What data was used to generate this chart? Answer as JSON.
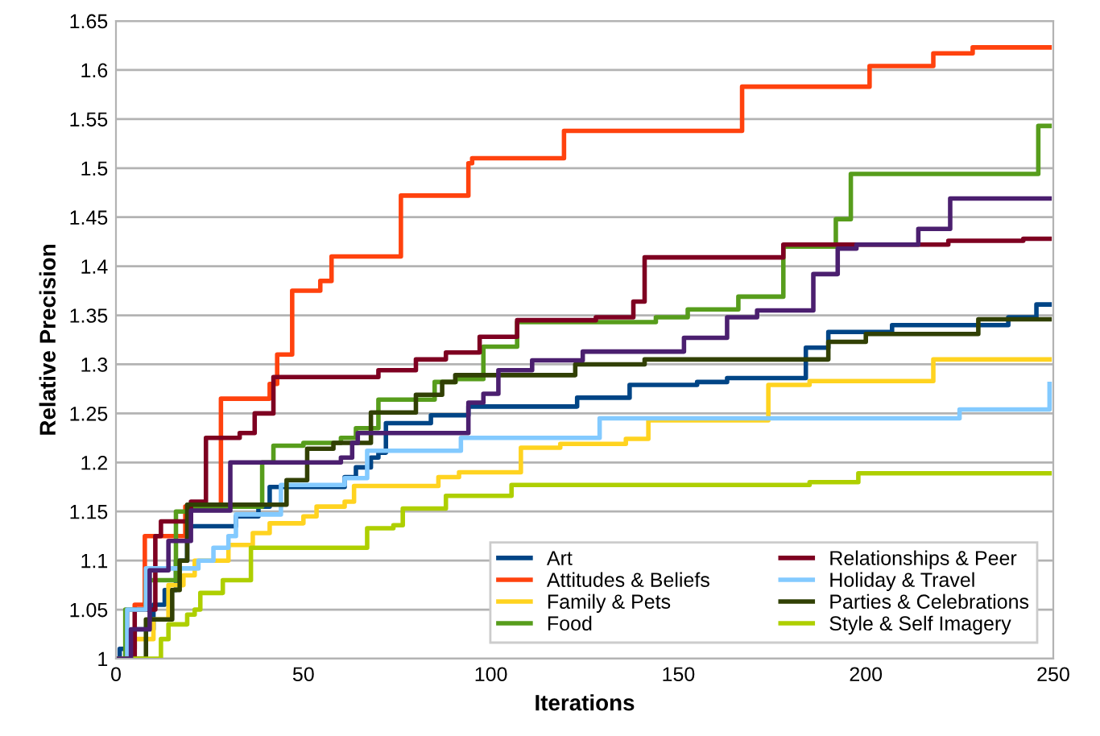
{
  "chart_data": {
    "type": "step",
    "xlabel": "Iterations",
    "ylabel": "Relative Precision",
    "xlim": [
      0,
      250
    ],
    "xticks": [
      0,
      50,
      100,
      150,
      200,
      250
    ],
    "ylim": [
      1,
      1.65
    ],
    "yticks": [
      1,
      1.05,
      1.1,
      1.15,
      1.2,
      1.25,
      1.3,
      1.35,
      1.4,
      1.45,
      1.5,
      1.55,
      1.6,
      1.65
    ],
    "grid": "y",
    "legend": "bottom right",
    "marker": "none",
    "line_style": "solid",
    "series": [
      {
        "name": "Art",
        "color": "#004586",
        "x": [
          0,
          1,
          5,
          10,
          13,
          16,
          19,
          32,
          38,
          41,
          61,
          64,
          68,
          70,
          72,
          84,
          94,
          123,
          137,
          155,
          163,
          184,
          190,
          207,
          238,
          245.5,
          249
        ],
        "values": [
          1,
          1.01,
          1.03,
          1.055,
          1.07,
          1.1,
          1.135,
          1.145,
          1.155,
          1.175,
          1.185,
          1.195,
          1.205,
          1.21,
          1.24,
          1.248,
          1.257,
          1.266,
          1.279,
          1.282,
          1.286,
          1.317,
          1.333,
          1.34,
          1.348,
          1.361,
          1.361
        ]
      },
      {
        "name": "Attitudes & Beliefs",
        "color": "#ff420e",
        "x": [
          0,
          3,
          5,
          7.7,
          18.5,
          28,
          41,
          43,
          47,
          54.5,
          57.5,
          76,
          94,
          95,
          119.5,
          167,
          201,
          218,
          228.5,
          249
        ],
        "values": [
          1,
          1.05,
          1.055,
          1.125,
          1.155,
          1.265,
          1.28,
          1.31,
          1.375,
          1.385,
          1.41,
          1.472,
          1.505,
          1.51,
          1.538,
          1.583,
          1.604,
          1.617,
          1.623,
          1.623
        ]
      },
      {
        "name": "Family & Pets",
        "color": "#ffd320",
        "x": [
          0,
          5,
          10,
          14,
          18,
          21,
          30,
          36.5,
          41,
          50,
          53.5,
          61,
          63.5,
          86,
          91.5,
          108,
          118.5,
          136,
          142,
          174,
          185,
          218,
          249
        ],
        "values": [
          1,
          1.02,
          1.04,
          1.075,
          1.085,
          1.1,
          1.116,
          1.128,
          1.138,
          1.145,
          1.155,
          1.16,
          1.176,
          1.185,
          1.19,
          1.215,
          1.219,
          1.224,
          1.243,
          1.279,
          1.283,
          1.305,
          1.305
        ]
      },
      {
        "name": "Food",
        "color": "#579d1c",
        "x": [
          0,
          2.5,
          8,
          16,
          20,
          39,
          42,
          50,
          60,
          64,
          70,
          85,
          90.6,
          98,
          107,
          144,
          152.5,
          166,
          178,
          192,
          196,
          246,
          249
        ],
        "values": [
          1,
          1.05,
          1.08,
          1.15,
          1.155,
          1.2,
          1.217,
          1.22,
          1.225,
          1.235,
          1.264,
          1.282,
          1.285,
          1.318,
          1.343,
          1.348,
          1.356,
          1.369,
          1.42,
          1.448,
          1.494,
          1.543,
          1.543
        ]
      },
      {
        "name": "Relationships & Peer",
        "color": "#7e0021",
        "x": [
          0,
          5,
          10.5,
          12,
          20,
          24,
          33,
          37,
          42,
          70,
          80,
          88,
          97,
          107,
          128,
          138,
          141,
          178,
          222,
          242,
          249
        ],
        "values": [
          1,
          1.05,
          1.125,
          1.14,
          1.16,
          1.225,
          1.23,
          1.25,
          1.287,
          1.294,
          1.305,
          1.312,
          1.328,
          1.345,
          1.348,
          1.364,
          1.409,
          1.422,
          1.426,
          1.428,
          1.428
        ]
      },
      {
        "name": "Holiday & Travel",
        "color": "#83caff",
        "x": [
          0,
          3,
          8,
          22,
          26,
          30,
          32,
          44,
          61,
          67,
          92,
          129,
          225,
          249
        ],
        "values": [
          1,
          1.05,
          1.092,
          1.1,
          1.113,
          1.125,
          1.147,
          1.177,
          1.184,
          1.212,
          1.225,
          1.245,
          1.254,
          1.28
        ]
      },
      {
        "name": "Parties & Celebrations",
        "color": "#314004",
        "x": [
          0,
          8,
          15,
          17,
          19,
          45.5,
          51,
          58,
          68,
          80,
          87,
          90.5,
          122.5,
          141,
          190,
          200,
          230,
          249
        ],
        "values": [
          1,
          1.04,
          1.07,
          1.1,
          1.157,
          1.182,
          1.214,
          1.22,
          1.251,
          1.269,
          1.282,
          1.289,
          1.3,
          1.305,
          1.323,
          1.331,
          1.346,
          1.346
        ]
      },
      {
        "name": "Style & Self Imagery",
        "color": "#aecf00",
        "x": [
          0,
          12,
          14,
          19,
          21,
          22.5,
          28.5,
          36,
          67,
          74,
          76.5,
          88,
          105.5,
          185,
          198,
          249
        ],
        "values": [
          1,
          1.02,
          1.035,
          1.045,
          1.05,
          1.067,
          1.08,
          1.113,
          1.133,
          1.136,
          1.153,
          1.166,
          1.177,
          1.18,
          1.189,
          1.189
        ]
      },
      {
        "color": "#4b1f6f",
        "x": [
          0,
          4,
          9,
          14,
          20,
          30.5,
          60,
          63,
          64.5,
          94,
          98,
          102,
          111,
          124.5,
          151.5,
          163,
          171,
          186,
          192.5,
          197.5,
          214,
          222.5,
          249
        ],
        "values": [
          1,
          1.03,
          1.09,
          1.12,
          1.151,
          1.2,
          1.205,
          1.22,
          1.23,
          1.261,
          1.27,
          1.294,
          1.304,
          1.313,
          1.327,
          1.348,
          1.355,
          1.392,
          1.418,
          1.422,
          1.438,
          1.469,
          1.469
        ]
      }
    ]
  }
}
